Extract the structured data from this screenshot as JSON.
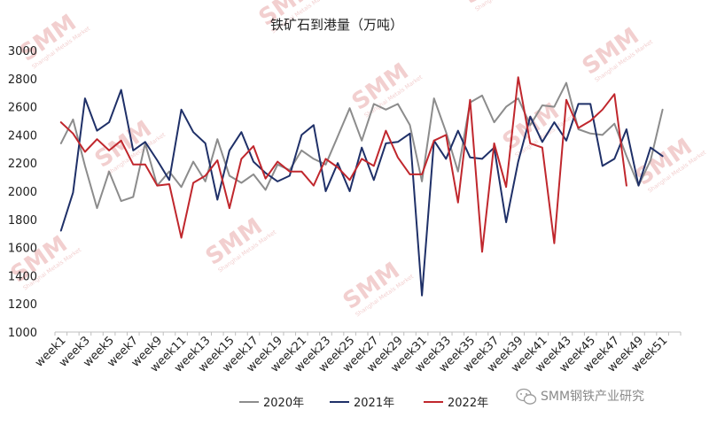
{
  "chart_data": {
    "type": "line",
    "title": "铁矿石到港量（万吨）",
    "xlabel": "",
    "ylabel": "",
    "ylim": [
      1000,
      3000
    ],
    "yticks": [
      1000,
      1200,
      1400,
      1600,
      1800,
      2000,
      2200,
      2400,
      2600,
      2800,
      3000
    ],
    "grid": false,
    "legend_position": "bottom-center",
    "x": [
      "week1",
      "week2",
      "week3",
      "week4",
      "week5",
      "week6",
      "week7",
      "week8",
      "week9",
      "week10",
      "week11",
      "week12",
      "week13",
      "week14",
      "week15",
      "week16",
      "week17",
      "week18",
      "week19",
      "week20",
      "week21",
      "week22",
      "week23",
      "week24",
      "week25",
      "week26",
      "week27",
      "week28",
      "week29",
      "week30",
      "week31",
      "week32",
      "week33",
      "week34",
      "week35",
      "week36",
      "week37",
      "week38",
      "week39",
      "week40",
      "week41",
      "week42",
      "week43",
      "week44",
      "week45",
      "week46",
      "week47",
      "week48",
      "week49",
      "week50",
      "week51",
      "week52"
    ],
    "xtick_labels": [
      "week1",
      "week3",
      "week5",
      "week7",
      "week9",
      "week11",
      "week13",
      "week15",
      "week17",
      "week19",
      "week21",
      "week23",
      "week25",
      "week27",
      "week29",
      "week31",
      "week33",
      "week35",
      "week37",
      "week39",
      "week41",
      "week43",
      "week45",
      "week47",
      "week49",
      "week51"
    ],
    "series": [
      {
        "name": "2020年",
        "color": "#8c8c8c",
        "values": [
          2340,
          2510,
          2180,
          1880,
          2140,
          1930,
          1960,
          2340,
          2040,
          2140,
          2030,
          2210,
          2070,
          2370,
          2110,
          2060,
          2120,
          2010,
          2190,
          2150,
          2290,
          2230,
          2190,
          2390,
          2590,
          2360,
          2620,
          2580,
          2620,
          2470,
          2070,
          2660,
          2420,
          2140,
          2630,
          2680,
          2490,
          2600,
          2660,
          2470,
          2610,
          2600,
          2770,
          2440,
          2410,
          2400,
          2480,
          2250,
          2040,
          2220,
          2580,
          null
        ]
      },
      {
        "name": "2021年",
        "color": "#1f3068",
        "values": [
          1720,
          1990,
          2660,
          2430,
          2490,
          2720,
          2290,
          2350,
          2220,
          2080,
          2580,
          2420,
          2340,
          1940,
          2290,
          2420,
          2210,
          2130,
          2070,
          2110,
          2400,
          2470,
          2000,
          2200,
          2000,
          2310,
          2080,
          2340,
          2350,
          2410,
          1260,
          2360,
          2230,
          2430,
          2240,
          2230,
          2310,
          1780,
          2210,
          2530,
          2350,
          2490,
          2360,
          2620,
          2620,
          2180,
          2230,
          2440,
          2040,
          2310,
          2250,
          null
        ]
      },
      {
        "name": "2022年",
        "color": "#c0272d",
        "values": [
          2490,
          2410,
          2280,
          2370,
          2290,
          2360,
          2190,
          2190,
          2040,
          2050,
          1670,
          2060,
          2110,
          2220,
          1880,
          2230,
          2320,
          2090,
          2210,
          2140,
          2140,
          2040,
          2230,
          2170,
          2080,
          2230,
          2180,
          2430,
          2240,
          2120,
          2120,
          2360,
          2400,
          1920,
          2650,
          1570,
          2340,
          2030,
          2810,
          2340,
          2310,
          1630,
          2650,
          2450,
          2500,
          2580,
          2690,
          2040,
          null,
          null,
          null,
          null
        ]
      }
    ]
  },
  "watermark": {
    "brand": "SMM",
    "subtitle": "Shanghai Metals Market",
    "color": "#e8a9a9"
  },
  "footer": {
    "source_label": "SMM钢铁产业研究",
    "icon": "wechat-icon"
  }
}
